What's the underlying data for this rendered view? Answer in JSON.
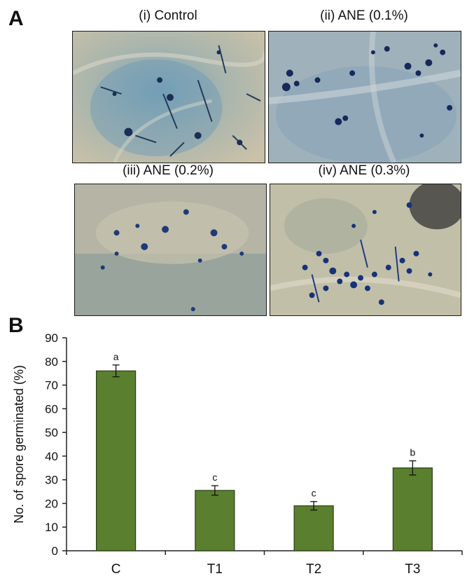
{
  "panel_a": {
    "letter": "A",
    "images": [
      {
        "caption": "(i) Control",
        "palette": "blue-tan"
      },
      {
        "caption": "(ii) ANE (0.1%)",
        "palette": "blue-grey"
      },
      {
        "caption": "(iii) ANE (0.2%)",
        "palette": "tan-grey"
      },
      {
        "caption": "(iv) ANE (0.3%)",
        "palette": "tan-dark"
      }
    ]
  },
  "panel_b": {
    "letter": "B"
  },
  "chart_data": {
    "type": "bar",
    "categories": [
      "C",
      "T1",
      "T2",
      "T3"
    ],
    "values": [
      76,
      25.5,
      19,
      35
    ],
    "errors": [
      2.5,
      2,
      1.8,
      3
    ],
    "significance": [
      "a",
      "c",
      "c",
      "b"
    ],
    "ylabel": "No. of spore germinated (%)",
    "xlabel": "",
    "ylim": [
      0,
      90
    ],
    "yticks": [
      "0",
      "10",
      "20",
      "30",
      "40",
      "50",
      "60",
      "70",
      "80",
      "90"
    ],
    "bar_color": "#5a7f2e",
    "bar_edge": "#2c3f14",
    "grid": false
  }
}
